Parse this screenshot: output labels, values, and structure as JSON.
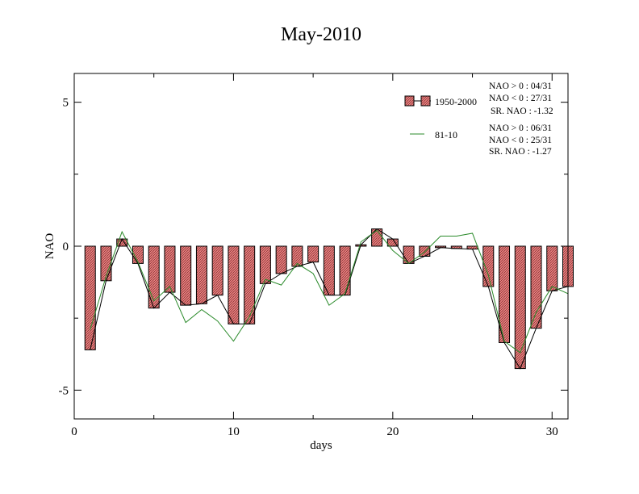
{
  "chart_data": {
    "type": "bar",
    "title": "May-2010",
    "xlabel": "days",
    "ylabel": "NAO",
    "xlim": [
      0,
      31
    ],
    "ylim": [
      -6,
      6
    ],
    "xticks": [
      0,
      10,
      20,
      30
    ],
    "yticks": [
      -5,
      0,
      5
    ],
    "x_tick_labels": [
      "0",
      "10",
      "20",
      "30"
    ],
    "y_tick_labels": [
      "-5",
      "0",
      "5"
    ],
    "x": [
      1,
      2,
      3,
      4,
      5,
      6,
      7,
      8,
      9,
      10,
      11,
      12,
      13,
      14,
      15,
      16,
      17,
      18,
      19,
      20,
      21,
      22,
      23,
      24,
      25,
      26,
      27,
      28,
      29,
      30,
      31
    ],
    "series": [
      {
        "name": "1950-2000",
        "kind": "bar+line",
        "color": "#e06060",
        "values": [
          -3.6,
          -1.2,
          0.25,
          -0.6,
          -2.15,
          -1.6,
          -2.05,
          -2.0,
          -1.7,
          -2.7,
          -2.7,
          -1.3,
          -0.95,
          -0.7,
          -0.55,
          -1.7,
          -1.7,
          0.05,
          0.6,
          0.25,
          -0.6,
          -0.35,
          -0.05,
          -0.08,
          -0.1,
          -1.4,
          -3.35,
          -4.25,
          -2.85,
          -1.55,
          -1.4
        ]
      },
      {
        "name": "81-10",
        "kind": "line",
        "color": "#2a8a2a",
        "values": [
          -2.9,
          -1.05,
          0.5,
          -0.55,
          -1.9,
          -1.4,
          -2.65,
          -2.2,
          -2.6,
          -3.3,
          -2.45,
          -1.15,
          -1.35,
          -0.6,
          -0.95,
          -2.05,
          -1.65,
          0.15,
          0.55,
          -0.15,
          -0.6,
          -0.2,
          0.35,
          0.35,
          0.45,
          -1.0,
          -3.3,
          -3.7,
          -2.3,
          -1.4,
          -1.65
        ]
      }
    ],
    "legend": {
      "placement": "top-right",
      "stats_1950_2000": [
        "NAO > 0 : 04/31",
        "NAO < 0 : 27/31",
        "SR. NAO : -1.32"
      ],
      "stats_81_10": [
        "NAO > 0 : 06/31",
        "NAO < 0 : 25/31",
        "SR. NAO : -1.27"
      ]
    },
    "grid": false
  }
}
